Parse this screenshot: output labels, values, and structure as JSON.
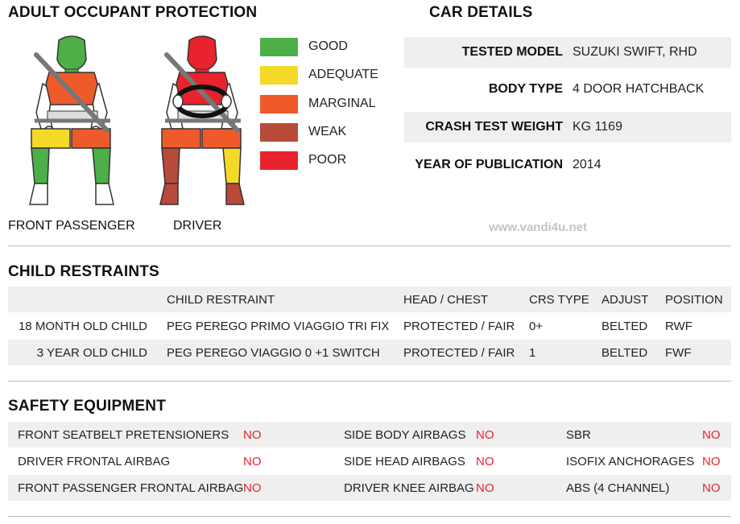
{
  "adult_section": {
    "title": "ADULT OCCUPANT PROTECTION",
    "front_passenger_label": "FRONT PASSENGER",
    "driver_label": "DRIVER",
    "front_passenger_ratings": {
      "head": "GOOD",
      "chest": "MARGINAL",
      "pelvis": "MARGINAL",
      "knee_left": "ADEQUATE",
      "knee_right": "MARGINAL",
      "leg_left": "GOOD",
      "leg_right": "GOOD"
    },
    "driver_ratings": {
      "head": "POOR",
      "chest": "POOR",
      "pelvis": "MARGINAL",
      "knee_left": "MARGINAL",
      "knee_right": "ADEQUATE",
      "leg_left": "WEAK",
      "leg_right": "WEAK"
    },
    "legend": [
      {
        "label": "GOOD",
        "color": "#4caf48"
      },
      {
        "label": "ADEQUATE",
        "color": "#f4d928"
      },
      {
        "label": "MARGINAL",
        "color": "#ef5a2a"
      },
      {
        "label": "WEAK",
        "color": "#b84a3a"
      },
      {
        "label": "POOR",
        "color": "#e8232e"
      }
    ]
  },
  "car_details": {
    "title": "CAR DETAILS",
    "rows": [
      {
        "key": "TESTED MODEL",
        "value": "SUZUKI SWIFT, RHD"
      },
      {
        "key": "BODY TYPE",
        "value": "4 DOOR HATCHBACK"
      },
      {
        "key": "CRASH TEST WEIGHT",
        "value": "KG 1169"
      },
      {
        "key": "YEAR OF PUBLICATION",
        "value": "2014"
      }
    ]
  },
  "watermark": "www.vandi4u.net",
  "child_restraints": {
    "title": "CHILD RESTRAINTS",
    "headers": {
      "restraint": "CHILD RESTRAINT",
      "head_chest": "HEAD / CHEST",
      "crs_type": "CRS TYPE",
      "adjust": "ADJUST",
      "position": "POSITION"
    },
    "rows": [
      {
        "child": "18 MONTH OLD CHILD",
        "restraint": "PEG PEREGO PRIMO VIAGGIO TRI FIX",
        "head_chest": "PROTECTED / FAIR",
        "crs_type": "0+",
        "adjust": "BELTED",
        "position": "RWF"
      },
      {
        "child": "3 YEAR OLD CHILD",
        "restraint": "PEG PEREGO VIAGGIO 0 +1 SWITCH",
        "head_chest": "PROTECTED / FAIR",
        "crs_type": "1",
        "adjust": "BELTED",
        "position": "FWF"
      }
    ]
  },
  "safety_equipment": {
    "title": "SAFETY EQUIPMENT",
    "no_color": "#e8232e",
    "rows": [
      [
        {
          "name": "FRONT SEATBELT PRETENSIONERS",
          "value": "NO"
        },
        {
          "name": "SIDE BODY AIRBAGS",
          "value": "NO"
        },
        {
          "name": "SBR",
          "value": "NO"
        }
      ],
      [
        {
          "name": "DRIVER FRONTAL AIRBAG",
          "value": "NO"
        },
        {
          "name": "SIDE HEAD AIRBAGS",
          "value": "NO"
        },
        {
          "name": "ISOFIX ANCHORAGES",
          "value": "NO"
        }
      ],
      [
        {
          "name": "FRONT PASSENGER FRONTAL AIRBAG",
          "value": "NO"
        },
        {
          "name": "DRIVER KNEE AIRBAG",
          "value": "NO"
        },
        {
          "name": "ABS (4 CHANNEL)",
          "value": "NO"
        }
      ]
    ]
  }
}
